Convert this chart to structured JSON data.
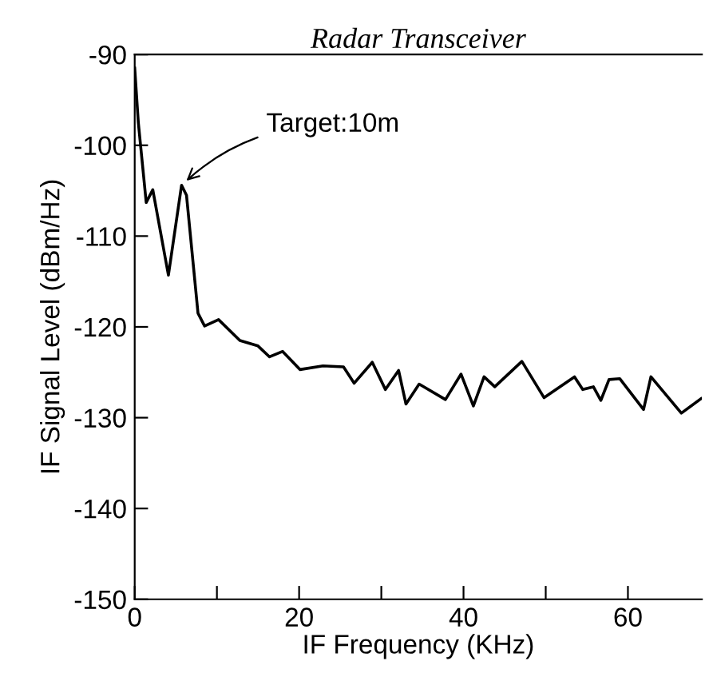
{
  "chart_data": {
    "type": "line",
    "title": "Radar Transceiver",
    "xlabel": "IF Frequency (KHz)",
    "ylabel": "IF Signal Level (dBm/Hz)",
    "x": [
      0,
      0.44,
      1.4,
      2.2,
      4.1,
      5.7,
      6.3,
      7.7,
      8.5,
      10.2,
      12.8,
      15.0,
      16.4,
      18.0,
      20.1,
      22.9,
      25.4,
      26.7,
      28.9,
      30.5,
      32.1,
      33.0,
      34.6,
      37.8,
      39.7,
      41.2,
      42.5,
      43.8,
      47.1,
      49.8,
      53.5,
      54.5,
      55.8,
      56.7,
      57.7,
      59.0,
      61.9,
      62.8,
      66.5,
      68.9
    ],
    "series": [
      {
        "color": "#000000",
        "values": [
          -91.5,
          -97.5,
          -106.3,
          -104.9,
          -114.3,
          -104.4,
          -105.5,
          -118.5,
          -119.9,
          -119.2,
          -121.5,
          -122.1,
          -123.3,
          -122.7,
          -124.7,
          -124.3,
          -124.4,
          -126.2,
          -123.9,
          -126.9,
          -124.8,
          -128.5,
          -126.3,
          -128.0,
          -125.2,
          -128.7,
          -125.5,
          -126.6,
          -123.8,
          -127.8,
          -125.5,
          -126.9,
          -126.6,
          -128.1,
          -125.8,
          -125.7,
          -129.1,
          -125.5,
          -129.5,
          -127.9
        ]
      }
    ],
    "annotations": [
      {
        "text": "Target:10m",
        "x": 5.7,
        "y": -104.4
      }
    ],
    "xlim": [
      0,
      69
    ],
    "ylim": [
      -150,
      -90
    ],
    "xticks": [
      0,
      {
        "value": 10,
        "label": null
      },
      20,
      {
        "value": 30,
        "label": null
      },
      40,
      {
        "value": 50,
        "label": null
      },
      60
    ],
    "yticks": [
      -150,
      -140,
      -130,
      -120,
      -110,
      -100,
      -90
    ],
    "grid": false,
    "legend": false,
    "marker": "none",
    "line_style": "solid"
  }
}
